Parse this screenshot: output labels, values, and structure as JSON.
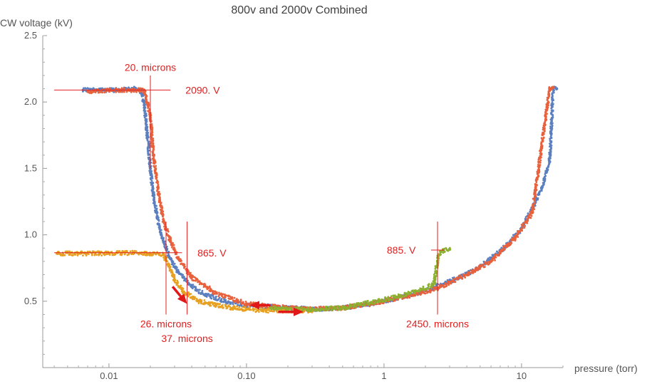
{
  "chart_data": {
    "type": "scatter",
    "title": "800v and 2000v Combined",
    "xlabel": "pressure (torr)",
    "ylabel": "CW voltage (kV)",
    "x_scale": "log",
    "xlim": [
      0.0033,
      20
    ],
    "ylim": [
      0.0,
      2.5
    ],
    "x_ticks": [
      {
        "value": 0.01,
        "label": "0.01"
      },
      {
        "value": 0.1,
        "label": "0.10"
      },
      {
        "value": 1,
        "label": "1"
      },
      {
        "value": 10,
        "label": "10"
      }
    ],
    "y_ticks": [
      {
        "value": 0.5,
        "label": "0.5"
      },
      {
        "value": 1.0,
        "label": "1.0"
      },
      {
        "value": 1.5,
        "label": "1.5"
      },
      {
        "value": 2.0,
        "label": "2.0"
      },
      {
        "value": 2.5,
        "label": "2.5"
      }
    ],
    "grid": false,
    "series": [
      {
        "color": "#5b7fbf",
        "points": [
          [
            0.0065,
            2.09
          ],
          [
            0.009,
            2.09
          ],
          [
            0.012,
            2.09
          ],
          [
            0.015,
            2.1
          ],
          [
            0.017,
            2.09
          ],
          [
            0.018,
            2.0
          ],
          [
            0.019,
            1.75
          ],
          [
            0.02,
            1.5
          ],
          [
            0.021,
            1.3
          ],
          [
            0.022,
            1.18
          ],
          [
            0.023,
            1.08
          ],
          [
            0.024,
            1.0
          ],
          [
            0.026,
            0.9
          ],
          [
            0.028,
            0.82
          ],
          [
            0.032,
            0.72
          ],
          [
            0.038,
            0.63
          ],
          [
            0.05,
            0.55
          ],
          [
            0.07,
            0.5
          ],
          [
            0.1,
            0.47
          ],
          [
            0.15,
            0.46
          ],
          [
            0.2,
            0.45
          ],
          [
            0.3,
            0.44
          ],
          [
            0.5,
            0.45
          ],
          [
            0.8,
            0.48
          ],
          [
            1.2,
            0.52
          ],
          [
            2,
            0.58
          ],
          [
            3,
            0.65
          ],
          [
            4.5,
            0.73
          ],
          [
            6,
            0.82
          ],
          [
            8,
            0.93
          ],
          [
            10,
            1.05
          ],
          [
            12,
            1.2
          ],
          [
            14,
            1.35
          ],
          [
            16,
            1.55
          ],
          [
            17,
            2.1
          ],
          [
            18,
            2.1
          ]
        ]
      },
      {
        "color": "#e8603c",
        "points": [
          [
            0.007,
            2.08
          ],
          [
            0.01,
            2.09
          ],
          [
            0.014,
            2.09
          ],
          [
            0.018,
            2.09
          ],
          [
            0.02,
            1.9
          ],
          [
            0.021,
            1.6
          ],
          [
            0.023,
            1.3
          ],
          [
            0.025,
            1.1
          ],
          [
            0.028,
            0.95
          ],
          [
            0.032,
            0.82
          ],
          [
            0.04,
            0.68
          ],
          [
            0.06,
            0.56
          ],
          [
            0.1,
            0.48
          ],
          [
            0.2,
            0.45
          ],
          [
            0.3,
            0.44
          ],
          [
            0.5,
            0.45
          ],
          [
            0.8,
            0.48
          ],
          [
            1.5,
            0.54
          ],
          [
            2.5,
            0.6
          ],
          [
            4,
            0.7
          ],
          [
            6,
            0.8
          ],
          [
            9,
            0.98
          ],
          [
            12,
            1.17
          ],
          [
            16,
            2.1
          ],
          [
            17,
            2.11
          ]
        ]
      },
      {
        "color": "#e8a020",
        "points": [
          [
            0.0042,
            0.86
          ],
          [
            0.006,
            0.86
          ],
          [
            0.01,
            0.86
          ],
          [
            0.015,
            0.865
          ],
          [
            0.02,
            0.86
          ],
          [
            0.025,
            0.85
          ],
          [
            0.027,
            0.78
          ],
          [
            0.03,
            0.66
          ],
          [
            0.035,
            0.57
          ],
          [
            0.045,
            0.5
          ],
          [
            0.06,
            0.47
          ],
          [
            0.08,
            0.45
          ],
          [
            0.1,
            0.44
          ],
          [
            0.13,
            0.43
          ],
          [
            0.18,
            0.43
          ],
          [
            0.25,
            0.43
          ],
          [
            0.3,
            0.43
          ]
        ]
      },
      {
        "color": "#8cb030",
        "points": [
          [
            0.15,
            0.45
          ],
          [
            0.2,
            0.44
          ],
          [
            0.3,
            0.44
          ],
          [
            0.5,
            0.45
          ],
          [
            0.8,
            0.49
          ],
          [
            1.2,
            0.53
          ],
          [
            1.8,
            0.58
          ],
          [
            2.3,
            0.63
          ],
          [
            2.5,
            0.85
          ],
          [
            2.7,
            0.885
          ],
          [
            3,
            0.89
          ]
        ]
      }
    ],
    "annotations": {
      "lines": [
        {
          "x": [
            0.004,
            0.028
          ],
          "y": [
            2.09,
            2.09
          ]
        },
        {
          "x": [
            0.02,
            0.02
          ],
          "y": [
            1.5,
            2.2
          ]
        },
        {
          "x": [
            0.004,
            0.034
          ],
          "y": [
            0.865,
            0.865
          ]
        },
        {
          "x": [
            0.026,
            0.026
          ],
          "y": [
            0.4,
            1.1
          ]
        },
        {
          "x": [
            0.037,
            0.037
          ],
          "y": [
            0.4,
            1.1
          ]
        },
        {
          "x": [
            2.2,
            2.75
          ],
          "y": [
            0.885,
            0.885
          ]
        },
        {
          "x": [
            2.45,
            2.45
          ],
          "y": [
            0.4,
            1.1
          ]
        }
      ],
      "labels": [
        {
          "text": "20. microns",
          "x": 0.02,
          "y": 2.26,
          "anchor": "middle"
        },
        {
          "text": "2090. V",
          "x": 0.036,
          "y": 2.09,
          "anchor": "start"
        },
        {
          "text": "865. V",
          "x": 0.044,
          "y": 0.865,
          "anchor": "start"
        },
        {
          "text": "885. V",
          "x": 1.7,
          "y": 0.885,
          "anchor": "end"
        },
        {
          "text": "26. microns",
          "x": 0.026,
          "y": 0.33,
          "anchor": "middle"
        },
        {
          "text": "37. microns",
          "x": 0.037,
          "y": 0.22,
          "anchor": "middle"
        },
        {
          "text": "2450. microns",
          "x": 2.45,
          "y": 0.33,
          "anchor": "middle"
        }
      ],
      "arrows": [
        {
          "x1": 0.029,
          "y1": 0.61,
          "x2": 0.037,
          "y2": 0.48
        },
        {
          "x1": 0.15,
          "y1": 0.47,
          "x2": 0.105,
          "y2": 0.47
        },
        {
          "x1": 0.17,
          "y1": 0.42,
          "x2": 0.26,
          "y2": 0.42
        }
      ]
    }
  }
}
